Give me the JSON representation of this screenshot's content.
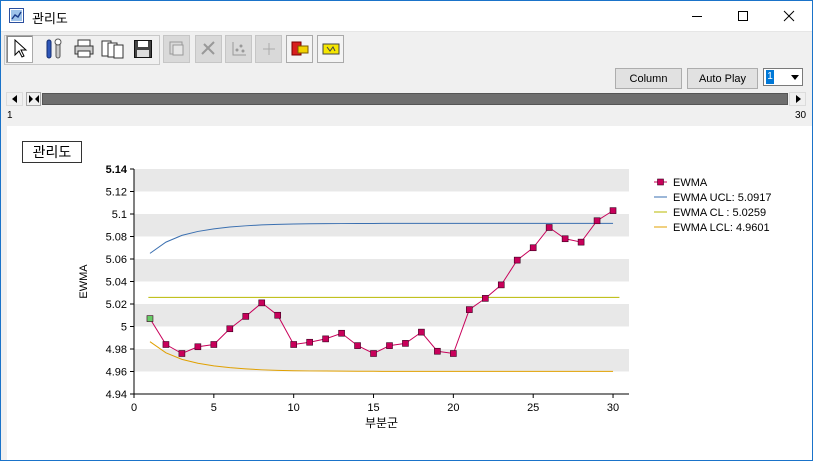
{
  "window": {
    "title": "관리도",
    "icon": "chart-window-icon",
    "buttons": [
      "minimize-icon",
      "maximize-icon",
      "close-icon"
    ]
  },
  "toolbar": {
    "items": [
      {
        "name": "pointer-tool",
        "icon": "cursor-arrow-icon",
        "state": "selected"
      },
      {
        "name": "settings",
        "icon": "tools-icon",
        "state": "enabled"
      },
      {
        "name": "print",
        "icon": "printer-icon",
        "state": "enabled"
      },
      {
        "name": "copy",
        "icon": "copy-icon",
        "state": "enabled"
      },
      {
        "name": "save",
        "icon": "floppy-disk-icon",
        "state": "enabled"
      },
      {
        "name": "chart-options",
        "icon": "chart-options-icon",
        "state": "disabled"
      },
      {
        "name": "cut",
        "icon": "scissors-icon",
        "state": "disabled"
      },
      {
        "name": "scatter",
        "icon": "scatter-icon",
        "state": "disabled"
      },
      {
        "name": "crosshair",
        "icon": "crosshair-icon",
        "state": "disabled"
      },
      {
        "name": "marker-red",
        "icon": "red-tag-icon",
        "state": "enabled"
      },
      {
        "name": "marker-yellow",
        "icon": "yellow-tag-icon",
        "state": "enabled"
      }
    ]
  },
  "controls": {
    "column_label": "Column",
    "auto_play_label": "Auto Play",
    "combo_value": "1"
  },
  "scrollbar": {
    "min_label": "1",
    "max_label": "30"
  },
  "chart_data": {
    "type": "line",
    "title": "관리도",
    "xlabel": "부분군",
    "ylabel": "EWMA",
    "xlim": [
      0,
      31
    ],
    "ylim": [
      4.94,
      5.14
    ],
    "x_ticks": [
      0,
      5,
      10,
      15,
      20,
      25,
      30
    ],
    "y_ticks": [
      "4.94",
      "4.96",
      "4.98",
      "5",
      "5.02",
      "5.04",
      "5.06",
      "5.08",
      "5.1",
      "5.12",
      "5.14"
    ],
    "grid": "alternating horizontal bands",
    "legend_position": "right",
    "series": [
      {
        "name": "EWMA",
        "color": "#c8005a",
        "marker": "square",
        "x": [
          1,
          2,
          3,
          4,
          5,
          6,
          7,
          8,
          9,
          10,
          11,
          12,
          13,
          14,
          15,
          16,
          17,
          18,
          19,
          20,
          21,
          22,
          23,
          24,
          25,
          26,
          27,
          28,
          29,
          30
        ],
        "values": [
          5.007,
          4.984,
          4.976,
          4.982,
          4.984,
          4.998,
          5.009,
          5.021,
          5.01,
          4.984,
          4.986,
          4.989,
          4.994,
          4.983,
          4.976,
          4.983,
          4.985,
          4.995,
          4.978,
          4.976,
          5.015,
          5.025,
          5.037,
          5.059,
          5.07,
          5.088,
          5.078,
          5.075,
          5.094,
          5.103
        ],
        "first_point_color": "#66cc66"
      },
      {
        "name": "EWMA UCL: 5.0917",
        "color": "#3a6fb0",
        "x": [
          1,
          2,
          3,
          4,
          5,
          6,
          7,
          8,
          9,
          10,
          11,
          12,
          13,
          14,
          15,
          16,
          17,
          18,
          19,
          20,
          21,
          22,
          23,
          24,
          25,
          26,
          27,
          28,
          29,
          30
        ],
        "values": [
          5.065,
          5.075,
          5.081,
          5.0845,
          5.0868,
          5.0884,
          5.0895,
          5.0903,
          5.0908,
          5.0911,
          5.0913,
          5.0914,
          5.0915,
          5.0916,
          5.0916,
          5.0917,
          5.0917,
          5.0917,
          5.0917,
          5.0917,
          5.0917,
          5.0917,
          5.0917,
          5.0917,
          5.0917,
          5.0917,
          5.0917,
          5.0917,
          5.0917,
          5.0917
        ]
      },
      {
        "name": "EWMA CL : 5.0259",
        "color": "#b8b800",
        "x": [
          0,
          31
        ],
        "values": [
          5.0259,
          5.0259
        ]
      },
      {
        "name": "EWMA LCL: 4.9601",
        "color": "#e0a000",
        "x": [
          1,
          2,
          3,
          4,
          5,
          6,
          7,
          8,
          9,
          10,
          11,
          12,
          13,
          14,
          15,
          16,
          17,
          18,
          19,
          20,
          21,
          22,
          23,
          24,
          25,
          26,
          27,
          28,
          29,
          30
        ],
        "values": [
          4.9865,
          4.9766,
          4.9708,
          4.9673,
          4.965,
          4.9634,
          4.9623,
          4.9615,
          4.961,
          4.9607,
          4.9605,
          4.9604,
          4.9603,
          4.9602,
          4.9602,
          4.9601,
          4.9601,
          4.9601,
          4.9601,
          4.9601,
          4.9601,
          4.9601,
          4.9601,
          4.9601,
          4.9601,
          4.9601,
          4.9601,
          4.9601,
          4.9601,
          4.9601
        ]
      }
    ]
  }
}
